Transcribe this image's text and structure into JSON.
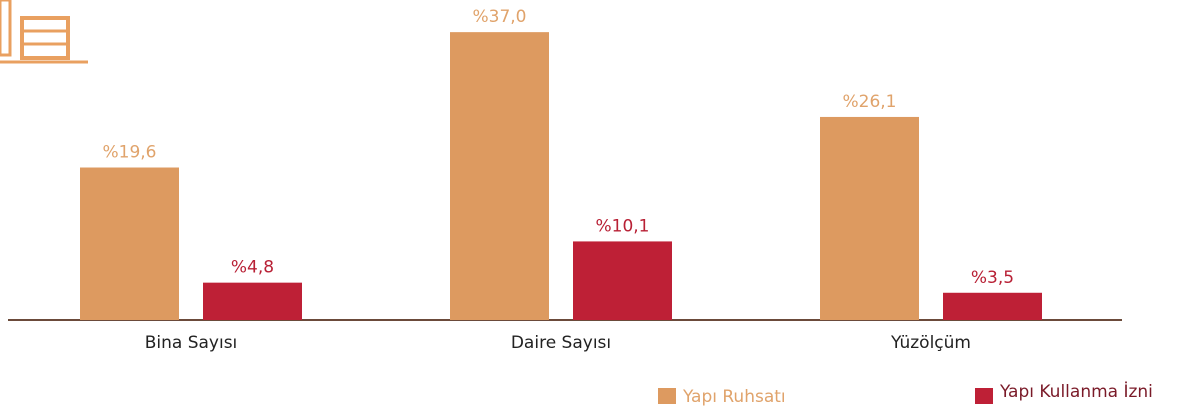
{
  "chart_data": {
    "type": "bar",
    "categories": [
      "Bina Sayısı",
      "Daire Sayısı",
      "Yüzölçüm"
    ],
    "series": [
      {
        "name": "Yapı Ruhsatı",
        "color": "#dd9a60",
        "values": [
          19.6,
          37.0,
          26.1
        ],
        "value_labels": [
          "%19,6",
          "%37,0",
          "%26,1"
        ]
      },
      {
        "name": "Yapı Kullanma İzni",
        "color": "#be2036",
        "values": [
          4.8,
          10.1,
          3.5
        ],
        "value_labels": [
          "%4,8",
          "%10,1",
          "%3,5"
        ]
      }
    ]
  }
}
